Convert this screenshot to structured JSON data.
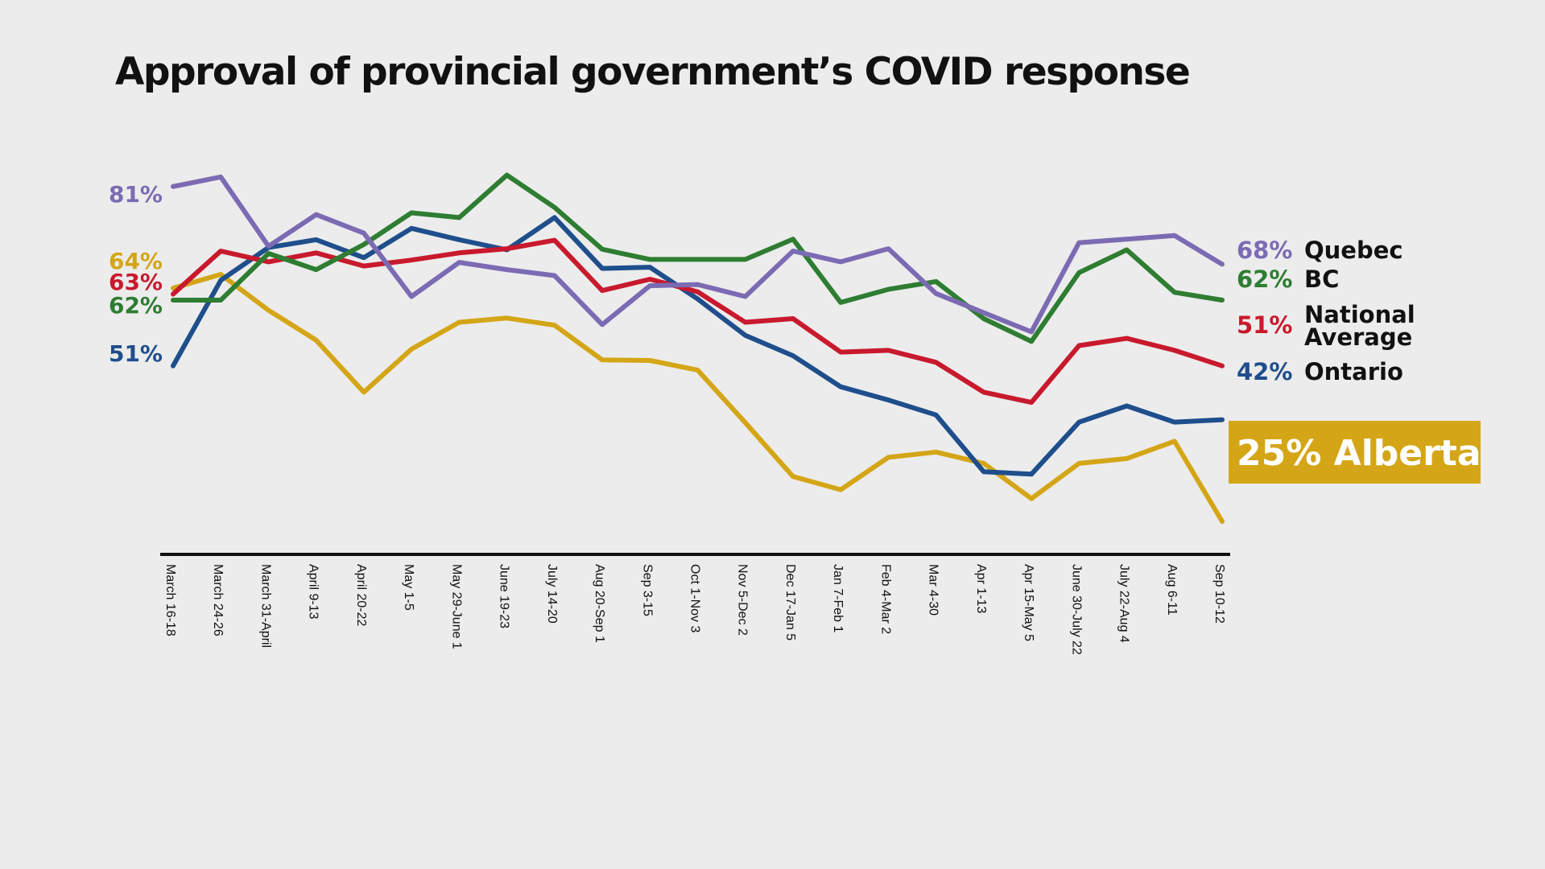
{
  "chart_data": {
    "type": "line",
    "title": "Approval of provincial government’s COVID response",
    "xlabel": "",
    "ylabel": "",
    "ylim": [
      18,
      92
    ],
    "grid": false,
    "legend": "right-end-labels",
    "categories": [
      "March 16-18",
      "March 24-26",
      "March 31-April",
      "April 9-13",
      "April 20-22",
      "May 1-5",
      "May 29-June 1",
      "June 19-23",
      "July 14-20",
      "Aug 20-Sep 1",
      "Sep 3-15",
      "Oct 1-Nov 3",
      "Nov 5-Dec 2",
      "Dec 17-Jan 5",
      "Jan 7-Feb 1",
      "Feb 4-Mar 2",
      "Mar 4-30",
      "Apr 1-13",
      "Apr 15-May 5",
      "June 30-July 22",
      "July 22-Aug 4",
      "Aug 6-11",
      "Sep 10-12"
    ],
    "series": [
      {
        "name": "Quebec",
        "color": "#7b6bb3",
        "start_label": "81%",
        "end_label": "68%",
        "values": [
          81,
          82.6,
          71,
          76.3,
          73.2,
          62.6,
          68.3,
          67.1,
          66.1,
          57.9,
          64.4,
          64.6,
          62.6,
          70.2,
          68.4,
          70.6,
          63.1,
          59.9,
          56.7,
          71.6,
          72.2,
          72.8,
          68
        ]
      },
      {
        "name": "BC",
        "color": "#2e7d32",
        "start_label": "62%",
        "end_label": "62%",
        "values": [
          62,
          62,
          69.8,
          67.1,
          71.3,
          76.6,
          75.8,
          82.9,
          77.5,
          70.5,
          68.8,
          68.8,
          68.8,
          72.2,
          61.6,
          63.8,
          65.1,
          58.9,
          55.1,
          66.6,
          70.4,
          63.3,
          62
        ]
      },
      {
        "name": "National Average",
        "color": "#c8192d",
        "start_label": "63%",
        "end_label": "51%",
        "values": [
          63,
          70.2,
          68.4,
          69.9,
          67.7,
          68.7,
          69.9,
          70.6,
          72.0,
          63.6,
          65.5,
          63.4,
          58.3,
          58.9,
          53.3,
          53.6,
          51.6,
          46.6,
          44.9,
          54.4,
          55.6,
          53.6,
          51
        ]
      },
      {
        "name": "Ontario",
        "color": "#1f4e8c",
        "start_label": "51%",
        "end_label": "42%",
        "values": [
          51,
          65.3,
          70.8,
          72.1,
          69.1,
          74.0,
          72.1,
          70.4,
          75.8,
          67.3,
          67.5,
          62.2,
          56.1,
          52.7,
          47.5,
          45.3,
          42.8,
          33.3,
          32.9,
          41.6,
          44.3,
          41.6,
          42
        ]
      },
      {
        "name": "Alberta",
        "color": "#d4a617",
        "start_label": "64%",
        "end_label": "25% Alberta",
        "values": [
          64,
          66.3,
          60.3,
          55.3,
          46.6,
          53.8,
          58.3,
          59.0,
          57.8,
          52.0,
          51.9,
          50.3,
          41.5,
          32.5,
          30.3,
          35.7,
          36.6,
          34.7,
          28.8,
          34.7,
          35.5,
          38.4,
          25
        ]
      }
    ]
  }
}
